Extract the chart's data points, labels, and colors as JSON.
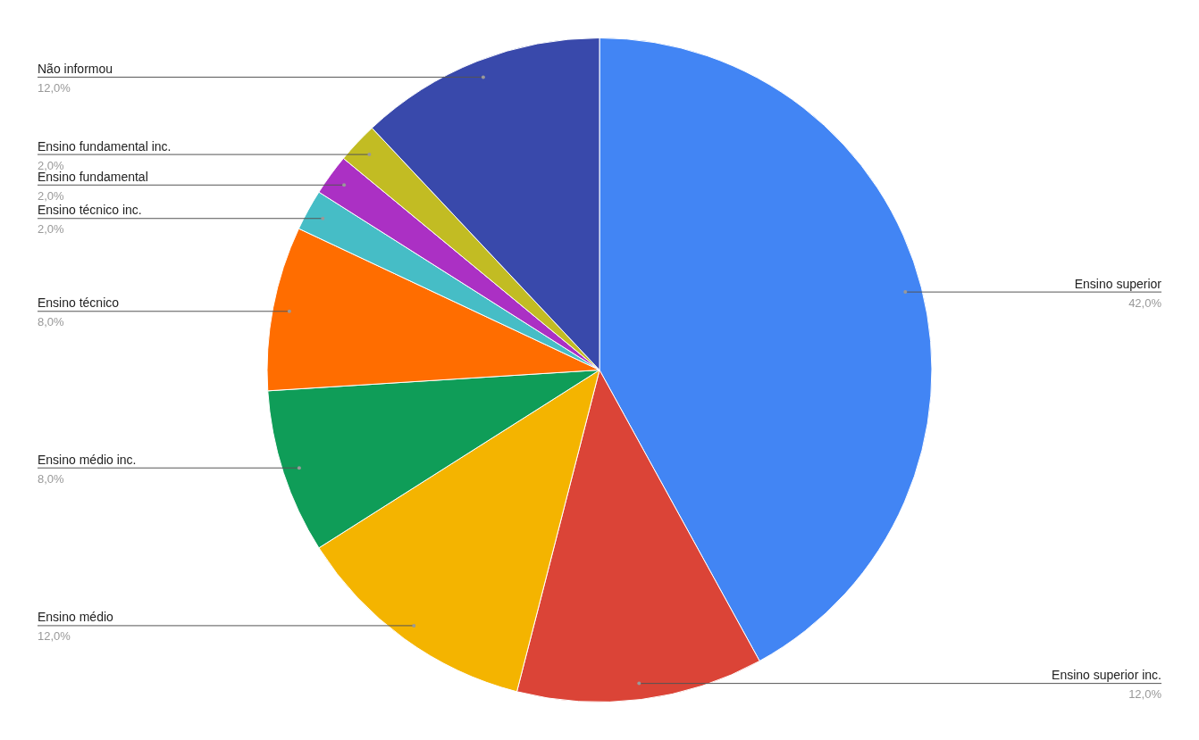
{
  "chart_data": {
    "type": "pie",
    "categories": [
      "Ensino superior",
      "Ensino superior inc.",
      "Ensino médio",
      "Ensino médio inc.",
      "Ensino técnico",
      "Ensino técnico inc.",
      "Ensino fundamental",
      "Ensino fundamental inc.",
      "Não informou"
    ],
    "values": [
      42,
      12,
      12,
      8,
      8,
      2,
      2,
      2,
      12
    ],
    "colors": [
      "#4285f4",
      "#db4437",
      "#f4b400",
      "#0f9d58",
      "#ff6d00",
      "#46bdc6",
      "#ab30c4",
      "#c2bc23",
      "#3949ab"
    ],
    "value_labels": [
      "42,0%",
      "12,0%",
      "12,0%",
      "8,0%",
      "8,0%",
      "2,0%",
      "2,0%",
      "2,0%",
      "12,0%"
    ],
    "legend": false
  }
}
